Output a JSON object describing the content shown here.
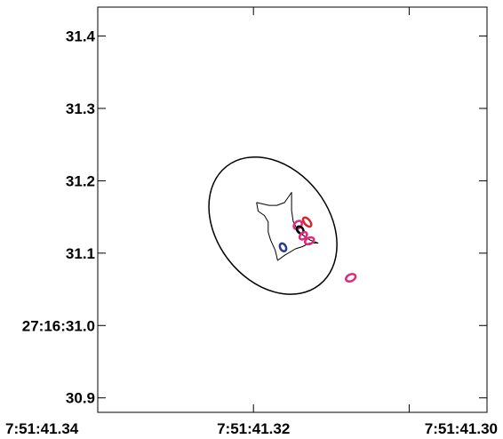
{
  "chart_data": {
    "type": "scatter",
    "title": "",
    "xlabel": "",
    "ylabel": "",
    "xlim": [
      7.34,
      7.29
    ],
    "ylim": [
      30.88,
      31.44
    ],
    "x_ticks": [
      {
        "value": 7.34,
        "label": "7:51:41.34"
      },
      {
        "value": 7.32,
        "label": "7:51:41.32"
      },
      {
        "value": 7.3,
        "label": "7:51:41.30"
      }
    ],
    "y_ticks": [
      {
        "value": 30.9,
        "label": "30.9"
      },
      {
        "value": 31.0,
        "label": "27:16:31.0"
      },
      {
        "value": 31.1,
        "label": "31.1"
      },
      {
        "value": 31.2,
        "label": "31.2"
      },
      {
        "value": 31.3,
        "label": "31.3"
      },
      {
        "value": 31.4,
        "label": "31.4"
      }
    ],
    "caustic": {
      "color": "#000000",
      "points": [
        [
          7.3196,
          31.17
        ],
        [
          7.3194,
          31.158
        ],
        [
          7.3186,
          31.152
        ],
        [
          7.3181,
          31.143
        ],
        [
          7.3181,
          31.129
        ],
        [
          7.3178,
          31.118
        ],
        [
          7.3172,
          31.104
        ],
        [
          7.3169,
          31.09
        ],
        [
          7.316,
          31.097
        ],
        [
          7.3146,
          31.106
        ],
        [
          7.3137,
          31.109
        ],
        [
          7.3128,
          31.114
        ],
        [
          7.3117,
          31.114
        ],
        [
          7.3127,
          31.118
        ],
        [
          7.3138,
          31.126
        ],
        [
          7.3144,
          31.133
        ],
        [
          7.3149,
          31.144
        ],
        [
          7.3151,
          31.159
        ],
        [
          7.3151,
          31.184
        ],
        [
          7.316,
          31.17
        ],
        [
          7.317,
          31.166
        ],
        [
          7.318,
          31.166
        ],
        [
          7.3196,
          31.17
        ]
      ]
    },
    "critical_curve": {
      "color": "#000000",
      "center": [
        7.3175,
        31.138
      ],
      "rx_data": 0.0072,
      "ry_data": 0.104,
      "rotation_deg": -38
    },
    "images": [
      {
        "x": 7.3162,
        "y": 31.108,
        "rx": 0.00037,
        "ry": 0.0058,
        "angle": -30,
        "color": "#2c3a8c"
      },
      {
        "x": 7.3143,
        "y": 31.139,
        "rx": 0.00043,
        "ry": 0.0065,
        "angle": 45,
        "color": "#e0287f"
      },
      {
        "x": 7.314,
        "y": 31.132,
        "rx": 0.00037,
        "ry": 0.0055,
        "angle": -40,
        "color": "#000000"
      },
      {
        "x": 7.3131,
        "y": 31.143,
        "rx": 0.00037,
        "ry": 0.0075,
        "angle": -40,
        "color": "#d7262d"
      },
      {
        "x": 7.3136,
        "y": 31.124,
        "rx": 0.00037,
        "ry": 0.006,
        "angle": 45,
        "color": "#e0287f"
      },
      {
        "x": 7.3128,
        "y": 31.117,
        "rx": 0.0004,
        "ry": 0.0065,
        "angle": 65,
        "color": "#e0287f"
      },
      {
        "x": 7.3075,
        "y": 31.066,
        "rx": 0.00043,
        "ry": 0.007,
        "angle": 65,
        "color": "#e0287f"
      }
    ],
    "grid": false,
    "legend": "none"
  }
}
